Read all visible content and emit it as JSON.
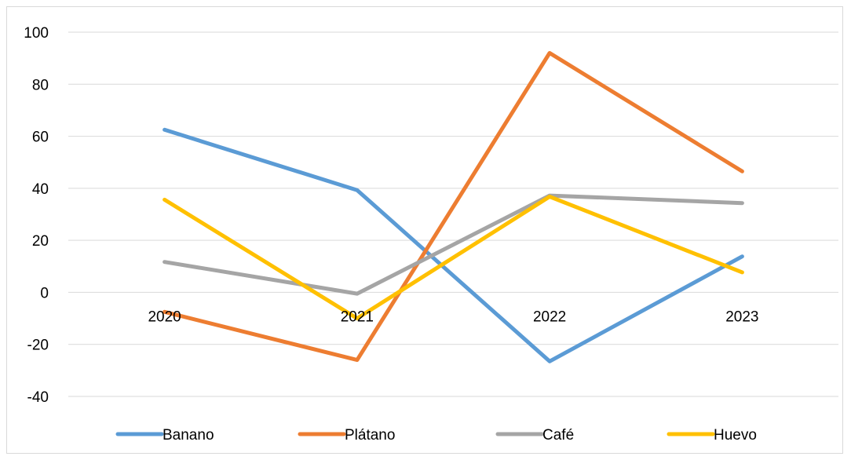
{
  "chart_data": {
    "type": "line",
    "title": "",
    "xlabel": "",
    "ylabel": "",
    "categories": [
      "2020",
      "2021",
      "2022",
      "2023"
    ],
    "ylim": [
      -40,
      100
    ],
    "yticks": [
      -40,
      -20,
      0,
      20,
      40,
      60,
      80,
      100
    ],
    "grid": true,
    "legend_position": "bottom",
    "series": [
      {
        "name": "Banano",
        "color": "#5b9bd5",
        "values": [
          62.5,
          39.3,
          -26.5,
          13.8
        ]
      },
      {
        "name": "Plátano",
        "color": "#ed7d31",
        "values": [
          -7.5,
          -26.0,
          92.0,
          46.5
        ]
      },
      {
        "name": "Café",
        "color": "#a5a5a5",
        "values": [
          11.7,
          -0.5,
          37.2,
          34.3
        ]
      },
      {
        "name": "Huevo",
        "color": "#ffc000",
        "values": [
          35.6,
          -10.0,
          36.8,
          7.7
        ]
      }
    ]
  }
}
